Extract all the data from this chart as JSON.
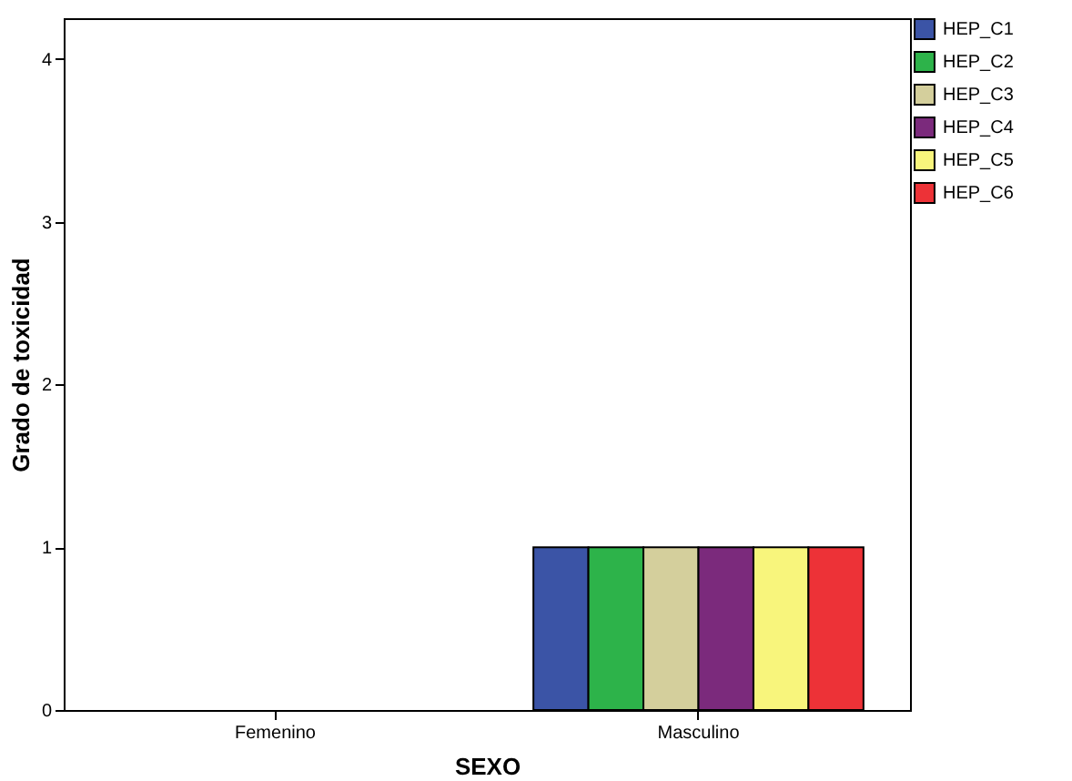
{
  "chart_data": {
    "type": "bar",
    "xlabel": "SEXO",
    "ylabel": "Grado de toxicidad",
    "categories": [
      "Femenino",
      "Masculino"
    ],
    "series": [
      {
        "name": "HEP_C1",
        "color": "#3b54a6",
        "values": [
          null,
          1
        ]
      },
      {
        "name": "HEP_C2",
        "color": "#2db34a",
        "values": [
          null,
          1
        ]
      },
      {
        "name": "HEP_C3",
        "color": "#d4cf9c",
        "values": [
          null,
          1
        ]
      },
      {
        "name": "HEP_C4",
        "color": "#7b2a7c",
        "values": [
          null,
          1
        ]
      },
      {
        "name": "HEP_C5",
        "color": "#f8f57c",
        "values": [
          null,
          1
        ]
      },
      {
        "name": "HEP_C6",
        "color": "#ed3237",
        "values": [
          null,
          1
        ]
      }
    ],
    "ylim": [
      0,
      4.25
    ],
    "yticks": [
      0,
      1,
      2,
      3,
      4
    ],
    "grid": false,
    "legend": "top right"
  }
}
